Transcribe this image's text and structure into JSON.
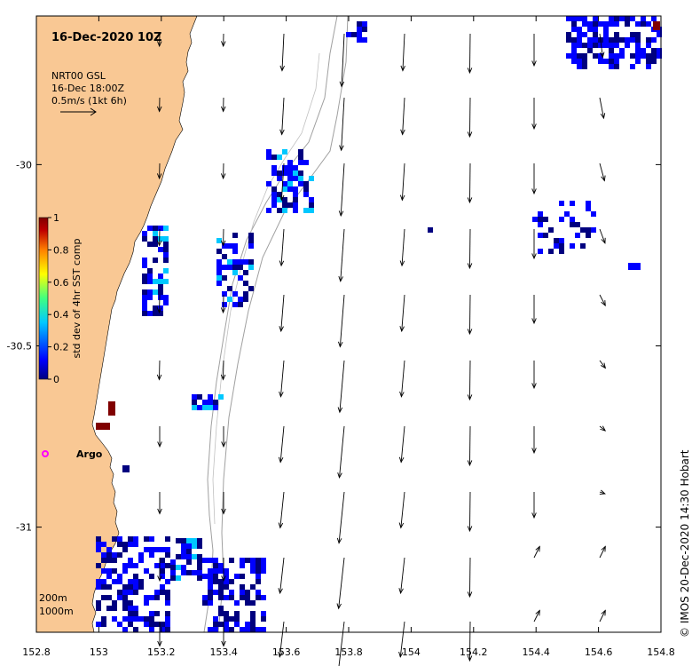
{
  "map": {
    "title": "16-Dec-2020 10Z",
    "current_legend": {
      "model": "NRT00 GSL",
      "time": "16-Dec 18:00Z",
      "scale": "0.5m/s (1kt 6h)"
    },
    "colorbar": {
      "label": "std dev of 4hr SST comp",
      "ticks": [
        "0",
        "0.2",
        "0.4",
        "0.6",
        "0.8",
        "1"
      ],
      "colors": [
        "#00007f",
        "#0000ff",
        "#00c8ff",
        "#40ff80",
        "#ffff00",
        "#ff8000",
        "#c00000",
        "#800000"
      ]
    },
    "x_ticks": [
      "152.8",
      "153",
      "153.2",
      "153.4",
      "153.6",
      "153.8",
      "154",
      "154.2",
      "154.4",
      "154.6",
      "154.8"
    ],
    "y_ticks": [
      "-30",
      "-30.5",
      "-31"
    ],
    "x_range": [
      152.8,
      154.8
    ],
    "y_range": [
      -31.29,
      -29.59
    ],
    "argo_label": "Argo",
    "isobath_labels": [
      "200m",
      "1000m"
    ],
    "credit": "© IMOS 20-Dec-2020 14:30 Hobart",
    "colors": {
      "land": "#f9c894",
      "argo": "#ff00ff",
      "isobath": "#a0a0a0"
    }
  }
}
